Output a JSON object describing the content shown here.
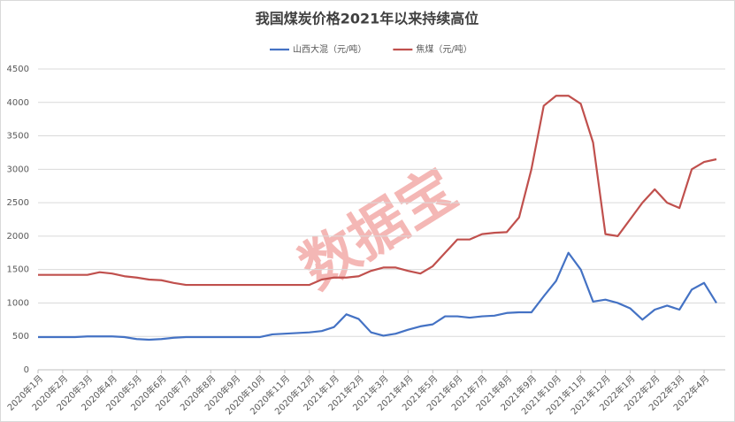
{
  "chart_data": {
    "type": "line",
    "title": "我国煤炭价格2021年以来持续高位",
    "watermark": "数据宝",
    "categories": [
      "2020年1月",
      null,
      "2020年2月",
      null,
      "2020年3月",
      null,
      "2020年4月",
      null,
      "2020年5月",
      null,
      "2020年6月",
      null,
      "2020年7月",
      null,
      "2020年8月",
      null,
      "2020年9月",
      null,
      "2020年10月",
      null,
      "2020年11月",
      null,
      "2020年12月",
      null,
      "2021年1月",
      null,
      "2021年2月",
      null,
      "2021年3月",
      null,
      "2021年4月",
      null,
      "2021年5月",
      null,
      "2021年6月",
      null,
      "2021年7月",
      null,
      "2021年8月",
      null,
      "2021年9月",
      null,
      "2021年10月",
      null,
      "2021年11月",
      null,
      "2021年12月",
      null,
      "2022年1月",
      null,
      "2022年2月",
      null,
      "2022年3月",
      null,
      "2022年4月",
      null
    ],
    "series": [
      {
        "name": "山西大混（元/吨）",
        "color": "#4472c4",
        "values": [
          490,
          490,
          490,
          490,
          500,
          500,
          500,
          490,
          460,
          450,
          460,
          480,
          490,
          490,
          490,
          490,
          490,
          490,
          490,
          530,
          540,
          550,
          560,
          580,
          640,
          830,
          760,
          560,
          510,
          540,
          600,
          650,
          680,
          800,
          800,
          780,
          800,
          810,
          850,
          860,
          860,
          1100,
          1330,
          1750,
          1500,
          1020,
          1050,
          1000,
          920,
          750,
          900,
          960,
          900,
          1200,
          1300,
          1000
        ]
      },
      {
        "name": "焦煤（元/吨）",
        "color": "#c0504d",
        "values": [
          1420,
          1420,
          1420,
          1420,
          1420,
          1460,
          1440,
          1400,
          1380,
          1350,
          1340,
          1300,
          1270,
          1270,
          1270,
          1270,
          1270,
          1270,
          1270,
          1270,
          1270,
          1270,
          1270,
          1350,
          1380,
          1380,
          1400,
          1480,
          1530,
          1530,
          1480,
          1440,
          1550,
          1750,
          1950,
          1950,
          2030,
          2050,
          2060,
          2280,
          3000,
          3950,
          4100,
          4100,
          3980,
          3400,
          2030,
          2000,
          2250,
          2500,
          2700,
          2500,
          2420,
          3000,
          3110,
          3150
        ]
      }
    ],
    "ylim": [
      0,
      4500
    ],
    "yticks": [
      0,
      500,
      1000,
      1500,
      2000,
      2500,
      3000,
      3500,
      4000,
      4500
    ],
    "grid": true,
    "legend": "top"
  }
}
